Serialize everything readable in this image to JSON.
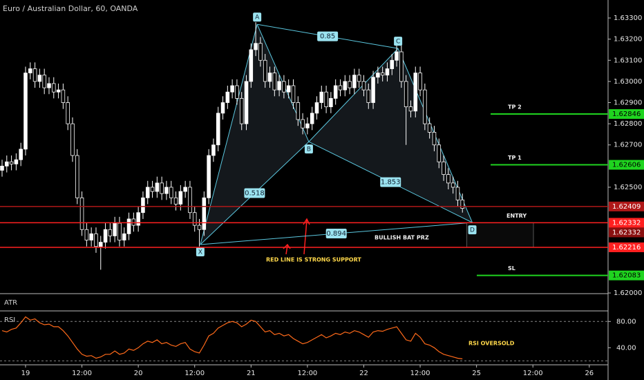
{
  "chart_data": [
    {
      "type": "candlestick",
      "title": "Euro / Australian Dollar, 60, OANDA",
      "x": [
        -5,
        -4,
        -3,
        -2,
        -1,
        0,
        1,
        2,
        3,
        4,
        5,
        6,
        7,
        8,
        9,
        10,
        11,
        12,
        13,
        14,
        15,
        16,
        17,
        18,
        19,
        20,
        21,
        22,
        23,
        24,
        25,
        26,
        27,
        28,
        29,
        30,
        31,
        32,
        33,
        34,
        35,
        36,
        37,
        38,
        39,
        40,
        41,
        42,
        43,
        44,
        45,
        46,
        47,
        48,
        49,
        50,
        51,
        52,
        53,
        54,
        55,
        56,
        57,
        58,
        59,
        60,
        61,
        62,
        63,
        64,
        65,
        66,
        67,
        68,
        69,
        70,
        71,
        72,
        73,
        74,
        75,
        76,
        77,
        78,
        79,
        80,
        81,
        82,
        83,
        84,
        85,
        86,
        87,
        88,
        89,
        90,
        91,
        92,
        93
      ],
      "open": [
        1.6258,
        1.626,
        1.6262,
        1.6261,
        1.6263,
        1.6268,
        1.6304,
        1.6306,
        1.63,
        1.6303,
        1.6297,
        1.6299,
        1.6295,
        1.6296,
        1.629,
        1.628,
        1.6265,
        1.6245,
        1.623,
        1.6225,
        1.6228,
        1.6222,
        1.6224,
        1.623,
        1.6227,
        1.6233,
        1.6225,
        1.6228,
        1.6235,
        1.6232,
        1.6238,
        1.6245,
        1.625,
        1.6248,
        1.6252,
        1.6247,
        1.625,
        1.6245,
        1.6242,
        1.6248,
        1.625,
        1.6238,
        1.6232,
        1.623,
        1.6245,
        1.6265,
        1.627,
        1.6285,
        1.629,
        1.6295,
        1.6298,
        1.6292,
        1.628,
        1.63,
        1.6315,
        1.6318,
        1.631,
        1.63,
        1.6304,
        1.6296,
        1.63,
        1.6295,
        1.6298,
        1.629,
        1.6282,
        1.6278,
        1.628,
        1.6285,
        1.629,
        1.6295,
        1.6288,
        1.6292,
        1.6298,
        1.6296,
        1.63,
        1.6297,
        1.6303,
        1.63,
        1.6296,
        1.629,
        1.6302,
        1.6304,
        1.6303,
        1.6306,
        1.631,
        1.6314,
        1.63,
        1.6288,
        1.6286,
        1.6304,
        1.6296,
        1.628,
        1.6276,
        1.627,
        1.6262,
        1.6256,
        1.6252,
        1.625,
        1.6244
      ],
      "high": [
        1.6263,
        1.6265,
        1.6265,
        1.6266,
        1.6271,
        1.6307,
        1.6309,
        1.6309,
        1.6306,
        1.6306,
        1.6302,
        1.6302,
        1.6299,
        1.6299,
        1.6293,
        1.6283,
        1.6268,
        1.6248,
        1.6233,
        1.6231,
        1.6231,
        1.6227,
        1.6233,
        1.6233,
        1.6236,
        1.6236,
        1.6231,
        1.6238,
        1.6238,
        1.6241,
        1.6248,
        1.6253,
        1.6253,
        1.6255,
        1.6255,
        1.6253,
        1.6253,
        1.6248,
        1.6251,
        1.6253,
        1.6253,
        1.6241,
        1.6235,
        1.6248,
        1.6268,
        1.6273,
        1.6288,
        1.6293,
        1.6298,
        1.6301,
        1.6301,
        1.6295,
        1.6303,
        1.6318,
        1.6328,
        1.6321,
        1.6313,
        1.6307,
        1.6307,
        1.6303,
        1.6303,
        1.6301,
        1.6301,
        1.6293,
        1.6285,
        1.6283,
        1.6288,
        1.6293,
        1.6298,
        1.6298,
        1.6295,
        1.6301,
        1.6301,
        1.6303,
        1.6303,
        1.6306,
        1.6306,
        1.6303,
        1.6299,
        1.6305,
        1.6307,
        1.6307,
        1.6309,
        1.6313,
        1.6319,
        1.6317,
        1.6303,
        1.6291,
        1.6307,
        1.6307,
        1.6299,
        1.6283,
        1.6279,
        1.6273,
        1.6265,
        1.6259,
        1.6255,
        1.6253,
        1.6247
      ],
      "low": [
        1.6255,
        1.6257,
        1.6258,
        1.6258,
        1.626,
        1.6265,
        1.6301,
        1.6297,
        1.6297,
        1.6294,
        1.6294,
        1.6292,
        1.6292,
        1.6287,
        1.6277,
        1.6262,
        1.6242,
        1.6227,
        1.6222,
        1.6222,
        1.6219,
        1.6211,
        1.6221,
        1.6224,
        1.6224,
        1.6222,
        1.6222,
        1.6225,
        1.6229,
        1.6229,
        1.6235,
        1.6242,
        1.6245,
        1.6245,
        1.6244,
        1.6244,
        1.6242,
        1.6239,
        1.6239,
        1.6245,
        1.6235,
        1.6229,
        1.6222,
        1.6227,
        1.6242,
        1.6262,
        1.6267,
        1.6282,
        1.6287,
        1.6292,
        1.6289,
        1.6277,
        1.6277,
        1.6297,
        1.6312,
        1.6307,
        1.6297,
        1.6297,
        1.6293,
        1.6293,
        1.6292,
        1.6292,
        1.6287,
        1.6279,
        1.6275,
        1.6275,
        1.6277,
        1.6282,
        1.6287,
        1.6285,
        1.6285,
        1.6289,
        1.6293,
        1.6293,
        1.6294,
        1.6294,
        1.6297,
        1.6293,
        1.6287,
        1.6287,
        1.6299,
        1.63,
        1.63,
        1.6303,
        1.6307,
        1.6297,
        1.627,
        1.6283,
        1.6283,
        1.6293,
        1.6277,
        1.6273,
        1.6267,
        1.6259,
        1.6253,
        1.6249,
        1.6247,
        1.6241,
        1.6238
      ],
      "close": [
        1.626,
        1.6262,
        1.6261,
        1.6263,
        1.6268,
        1.6304,
        1.6306,
        1.63,
        1.6303,
        1.6297,
        1.6299,
        1.6295,
        1.6296,
        1.629,
        1.628,
        1.6265,
        1.6245,
        1.623,
        1.6225,
        1.6228,
        1.6222,
        1.6224,
        1.623,
        1.6227,
        1.6233,
        1.6225,
        1.6228,
        1.6235,
        1.6232,
        1.6238,
        1.6245,
        1.625,
        1.6248,
        1.6252,
        1.6247,
        1.625,
        1.6245,
        1.6242,
        1.6248,
        1.625,
        1.6238,
        1.6232,
        1.623,
        1.6245,
        1.6265,
        1.627,
        1.6285,
        1.629,
        1.6295,
        1.6298,
        1.6292,
        1.628,
        1.63,
        1.6315,
        1.6318,
        1.631,
        1.63,
        1.6304,
        1.6296,
        1.63,
        1.6295,
        1.6298,
        1.629,
        1.6282,
        1.6278,
        1.628,
        1.6285,
        1.629,
        1.6295,
        1.6288,
        1.6292,
        1.6298,
        1.6296,
        1.63,
        1.6297,
        1.6303,
        1.63,
        1.6296,
        1.629,
        1.6302,
        1.6304,
        1.6303,
        1.6306,
        1.631,
        1.6314,
        1.63,
        1.6288,
        1.6286,
        1.6304,
        1.6296,
        1.628,
        1.6276,
        1.627,
        1.6262,
        1.6256,
        1.6252,
        1.625,
        1.6244,
        1.624
      ],
      "up_color": "#ffffff",
      "down_color": "#000000",
      "xlim": [
        -5.44,
        124
      ],
      "ylim": [
        1.61997,
        1.63385
      ],
      "xticks": [
        {
          "value": 0,
          "label": "19"
        },
        {
          "value": 12,
          "label": "12:00"
        },
        {
          "value": 24,
          "label": "20"
        },
        {
          "value": 36,
          "label": "12:00"
        },
        {
          "value": 48,
          "label": "21"
        },
        {
          "value": 60,
          "label": "12:00"
        },
        {
          "value": 72,
          "label": "22"
        },
        {
          "value": 84,
          "label": "12:00"
        },
        {
          "value": 96,
          "label": "25"
        },
        {
          "value": 108,
          "label": "12:00"
        },
        {
          "value": 120,
          "label": "26"
        }
      ],
      "yticks": [
        {
          "value": 1.633,
          "label": "1.63300"
        },
        {
          "value": 1.632,
          "label": "1.63200"
        },
        {
          "value": 1.631,
          "label": "1.63100"
        },
        {
          "value": 1.63,
          "label": "1.63000"
        },
        {
          "value": 1.629,
          "label": "1.62900"
        },
        {
          "value": 1.628,
          "label": "1.62800"
        },
        {
          "value": 1.627,
          "label": "1.62700"
        },
        {
          "value": 1.625,
          "label": "1.62500"
        },
        {
          "value": 1.62,
          "label": "1.62000"
        }
      ],
      "levels": [
        {
          "name": "TP 2",
          "value": 1.62846,
          "color": "#1fd41f"
        },
        {
          "name": "TP 1",
          "value": 1.62606,
          "color": "#1fd41f"
        },
        {
          "value": 1.62409,
          "color": "#b01818"
        },
        {
          "name": "ENTRY",
          "value": 1.62332,
          "color": "#ff2020"
        },
        {
          "value": 1.62216,
          "color": "#ff2020"
        },
        {
          "name": "SL",
          "value": 1.62083,
          "color": "#1fd41f"
        }
      ],
      "last_price": 1.62332,
      "pattern": {
        "color": "#5bc8e0",
        "points": [
          {
            "label": "X",
            "x": 37.2,
            "price": 1.62229
          },
          {
            "label": "A",
            "x": 49.3,
            "price": 1.6327
          },
          {
            "label": "B",
            "x": 60.3,
            "price": 1.62715
          },
          {
            "label": "C",
            "x": 79.3,
            "price": 1.63156
          },
          {
            "label": "D",
            "x": 95.1,
            "price": 1.62333
          }
        ],
        "ratios": [
          0.518,
          0.85,
          1.853,
          0.894
        ]
      },
      "annotations": [
        "BULLISH BAT PRZ",
        "RED LINE IS STRONG SUPPORT"
      ]
    },
    {
      "type": "line",
      "title": "RSI",
      "color": "#ff6a1a",
      "values": [
        66,
        64,
        68,
        70,
        78,
        87,
        82,
        84,
        78,
        75,
        76,
        72,
        72,
        66,
        58,
        48,
        38,
        30,
        27,
        28,
        24,
        26,
        30,
        30,
        35,
        30,
        32,
        38,
        36,
        40,
        46,
        50,
        48,
        52,
        46,
        48,
        44,
        42,
        46,
        48,
        38,
        34,
        32,
        44,
        58,
        62,
        70,
        74,
        78,
        80,
        78,
        72,
        76,
        82,
        80,
        72,
        64,
        66,
        60,
        62,
        58,
        60,
        54,
        50,
        46,
        48,
        52,
        56,
        60,
        55,
        58,
        62,
        60,
        64,
        62,
        66,
        64,
        60,
        56,
        64,
        66,
        65,
        68,
        70,
        72,
        62,
        52,
        50,
        62,
        56,
        46,
        44,
        40,
        34,
        30,
        28,
        26,
        24,
        23
      ],
      "ylim": [
        14,
        95
      ],
      "yticks": [
        {
          "value": 80,
          "label": "80.00"
        },
        {
          "value": 40,
          "label": "40.00"
        }
      ],
      "levels": [
        80,
        20
      ],
      "annotations": [
        "RSI OVERSOLD"
      ]
    }
  ],
  "panels": {
    "atr": "ATR"
  }
}
